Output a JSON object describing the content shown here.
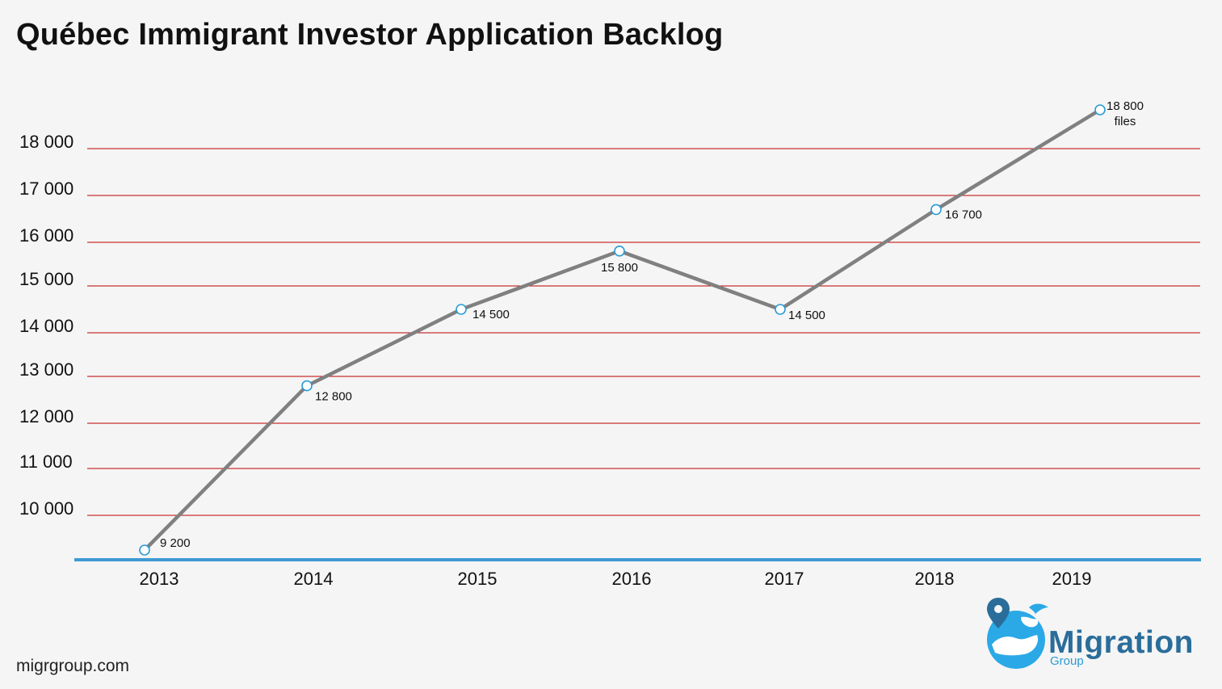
{
  "title": "Québec Immigrant Investor Application Backlog",
  "footer": {
    "url": "migrgroup.com"
  },
  "logo": {
    "word": "Migration",
    "sub": "Group",
    "name": "Migration Group logo"
  },
  "colors": {
    "line": "#808080",
    "grid": "#c00000",
    "baseline": "#3e9bd2",
    "marker_stroke": "#2a9bd6",
    "marker_fill": "#ffffff"
  },
  "chart_data": {
    "type": "line",
    "title": "Québec Immigrant Investor Application Backlog",
    "categories": [
      "2013",
      "2014",
      "2015",
      "2016",
      "2017",
      "2018",
      "2019"
    ],
    "series": [
      {
        "values": [
          9200,
          12800,
          14500,
          15800,
          14500,
          16700,
          18800
        ]
      }
    ],
    "data_labels": [
      "9 200",
      "12 800",
      "14 500",
      "15 800",
      "14 500",
      "16 700",
      "18 800 files"
    ],
    "y_ticks": [
      10000,
      11000,
      12000,
      13000,
      14000,
      15000,
      16000,
      17000,
      18000
    ],
    "y_tick_labels": [
      "10 000",
      "11 000",
      "12 000",
      "13 000",
      "14 000",
      "15 000",
      "16 000",
      "17 000",
      "18 000"
    ],
    "xlabel": "",
    "ylabel": "",
    "grid": true,
    "legend": "none"
  }
}
